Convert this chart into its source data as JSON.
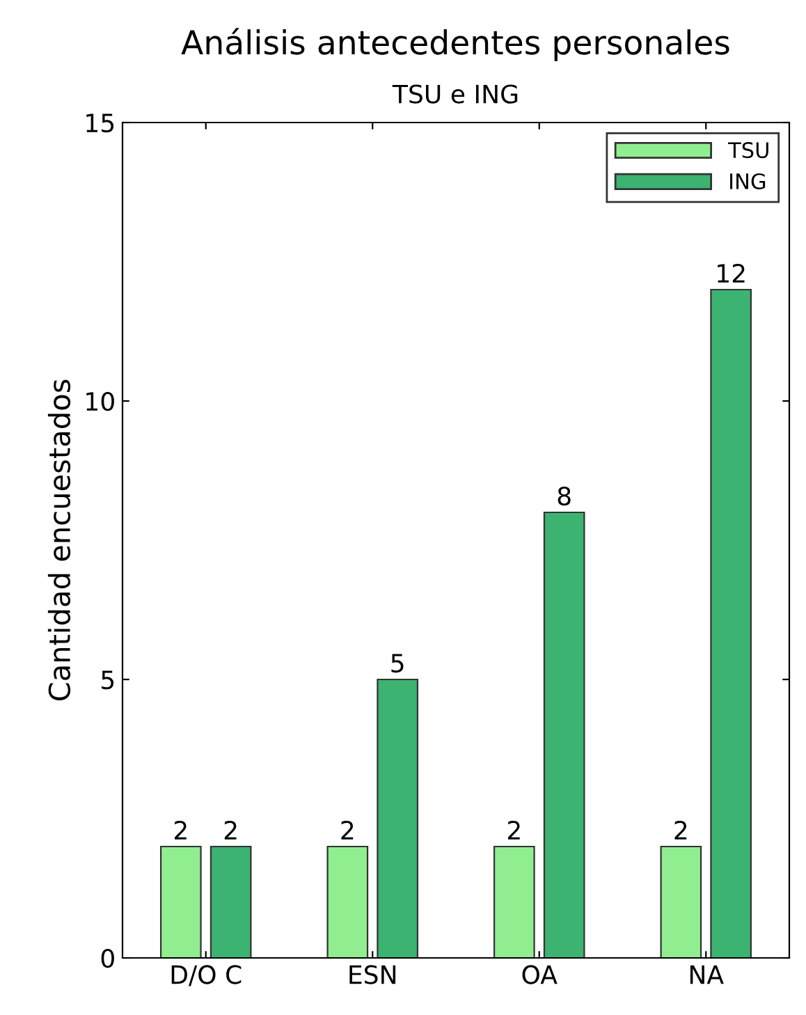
{
  "chart_data": {
    "type": "bar",
    "title": "Análisis antecedentes personales",
    "subtitle": "TSU e ING",
    "ylabel": "Cantidad encuestados",
    "categories": [
      "D/O C",
      "ESN",
      "OA",
      "NA"
    ],
    "series": [
      {
        "name": "TSU",
        "color": "#90ee90",
        "values": [
          2,
          2,
          2,
          2
        ]
      },
      {
        "name": "ING",
        "color": "#3cb371",
        "values": [
          2,
          5,
          8,
          12
        ]
      }
    ],
    "ylim": [
      0,
      15
    ],
    "yticks": [
      0,
      5,
      10,
      15
    ],
    "grid": false,
    "legend": "top right",
    "data_labels": true
  }
}
